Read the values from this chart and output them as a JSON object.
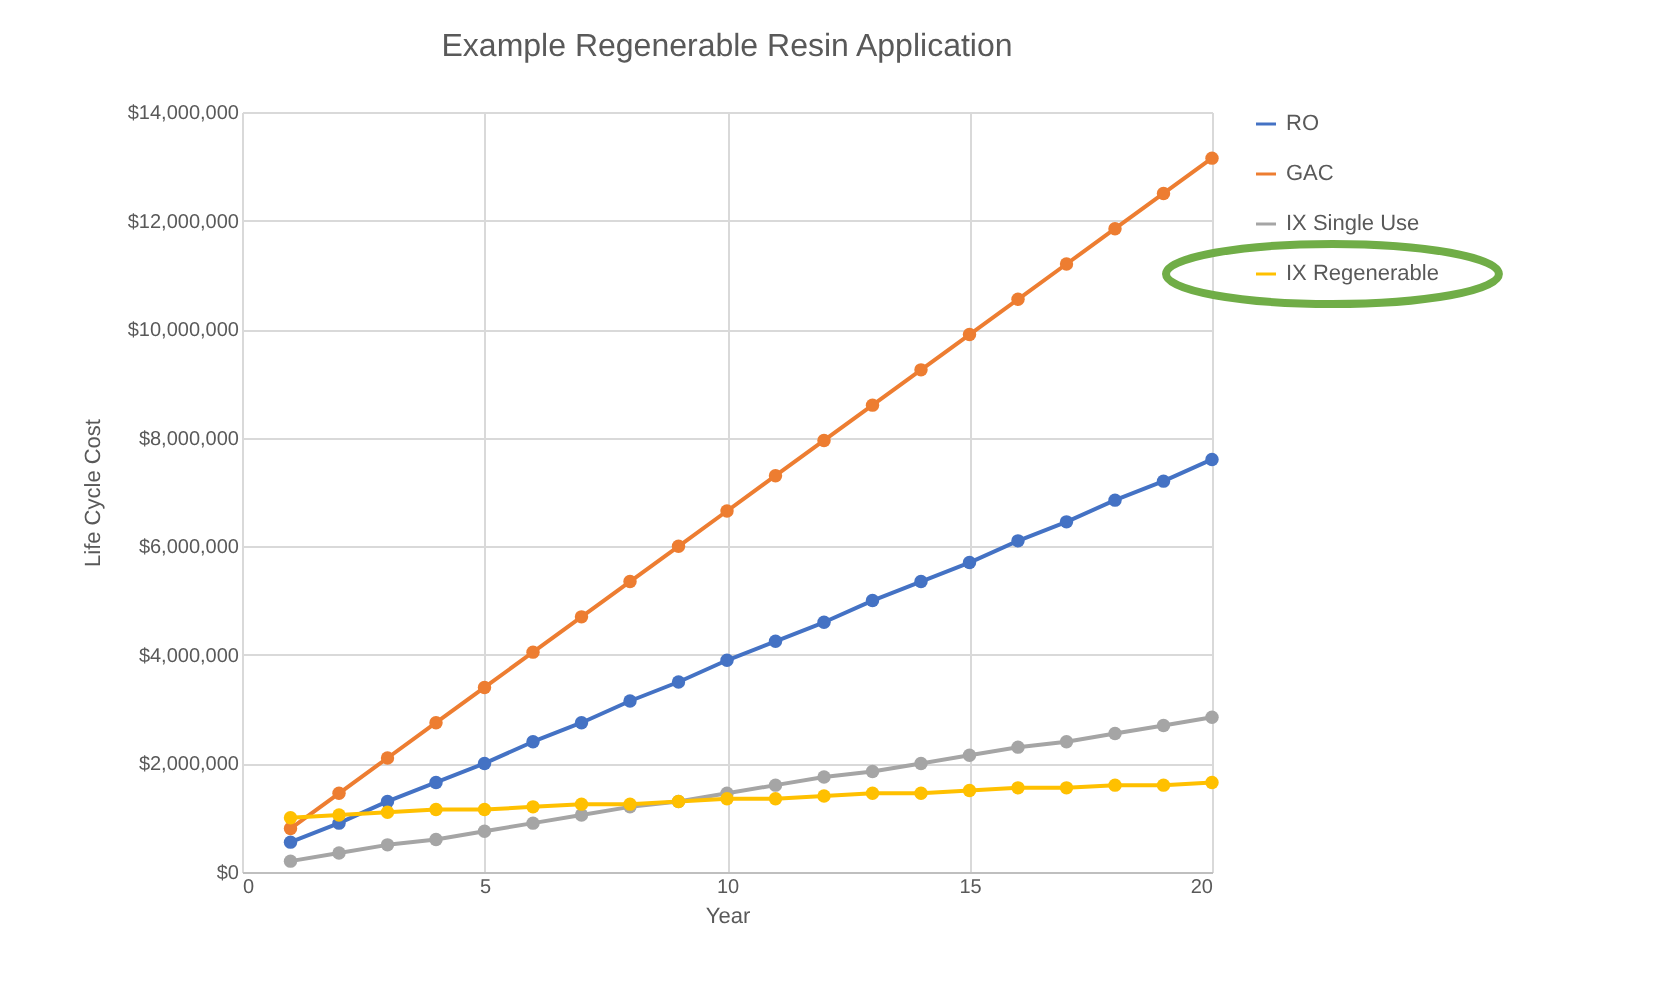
{
  "chart_data": {
    "type": "line",
    "title": "Example Regenerable Resin Application",
    "xlabel": "Year",
    "ylabel": "Life Cycle Cost",
    "x": [
      1,
      2,
      3,
      4,
      5,
      6,
      7,
      8,
      9,
      10,
      11,
      12,
      13,
      14,
      15,
      16,
      17,
      18,
      19,
      20
    ],
    "series": [
      {
        "name": "RO",
        "color": "#4472c4",
        "values": [
          550000,
          900000,
          1300000,
          1650000,
          2000000,
          2400000,
          2750000,
          3150000,
          3500000,
          3900000,
          4250000,
          4600000,
          5000000,
          5350000,
          5700000,
          6100000,
          6450000,
          6850000,
          7200000,
          7600000
        ]
      },
      {
        "name": "GAC",
        "color": "#ed7d31",
        "values": [
          800000,
          1450000,
          2100000,
          2750000,
          3400000,
          4050000,
          4700000,
          5350000,
          6000000,
          6650000,
          7300000,
          7950000,
          8600000,
          9250000,
          9900000,
          10550000,
          11200000,
          11850000,
          12500000,
          13150000
        ]
      },
      {
        "name": "IX Single Use",
        "color": "#a5a5a5",
        "values": [
          200000,
          350000,
          500000,
          600000,
          750000,
          900000,
          1050000,
          1200000,
          1300000,
          1450000,
          1600000,
          1750000,
          1850000,
          2000000,
          2150000,
          2300000,
          2400000,
          2550000,
          2700000,
          2850000
        ]
      },
      {
        "name": "IX Regenerable",
        "color": "#ffc000",
        "values": [
          1000000,
          1050000,
          1100000,
          1150000,
          1150000,
          1200000,
          1250000,
          1250000,
          1300000,
          1350000,
          1350000,
          1400000,
          1450000,
          1450000,
          1500000,
          1550000,
          1550000,
          1600000,
          1600000,
          1650000
        ]
      }
    ],
    "xlim": [
      0,
      20
    ],
    "xticks": [
      0,
      5,
      10,
      15,
      20
    ],
    "ylim": [
      0,
      14000000
    ],
    "yticks": [
      {
        "value": 0,
        "label": "$0"
      },
      {
        "value": 2000000,
        "label": "$2,000,000"
      },
      {
        "value": 4000000,
        "label": "$4,000,000"
      },
      {
        "value": 6000000,
        "label": "$6,000,000"
      },
      {
        "value": 8000000,
        "label": "$8,000,000"
      },
      {
        "value": 10000000,
        "label": "$10,000,000"
      },
      {
        "value": 12000000,
        "label": "$12,000,000"
      },
      {
        "value": 14000000,
        "label": "$14,000,000"
      }
    ],
    "grid": true,
    "legend": "right",
    "marker": "circle",
    "line_style": "solid"
  }
}
